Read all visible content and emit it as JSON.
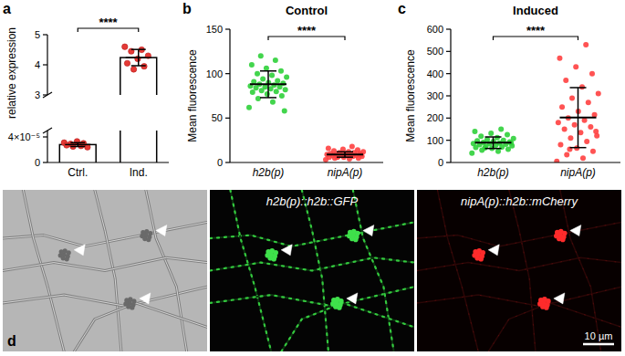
{
  "chart_data": [
    {
      "type": "bar",
      "panel_label": "a",
      "ylabel": "relative expression",
      "categories": [
        "Ctrl.",
        "Ind."
      ],
      "values": [
        2.8e-05,
        4.24
      ],
      "errors": [
        3e-06,
        0.27
      ],
      "points": [
        [
          3.1e-05,
          2.6e-05,
          2.9e-05,
          2.4e-05,
          3.3e-05,
          2.7e-05,
          3e-05,
          2.5e-05
        ],
        [
          4.6,
          4.5,
          4.45,
          4.3,
          4.2,
          4.05,
          3.95,
          3.85
        ]
      ],
      "color": "#e53935",
      "ylim": [
        0,
        5
      ],
      "y_break": [
        5e-05,
        3
      ],
      "yticks": [
        0,
        {
          "value": 4e-05,
          "label": "4×10⁻⁵"
        },
        3,
        4,
        5
      ],
      "annotations": [
        "****"
      ]
    },
    {
      "type": "dot",
      "panel_label": "b",
      "title": "Control",
      "ylabel": "Mean fluorescence",
      "categories": [
        "h2b(p)",
        "nipA(p)"
      ],
      "values": [
        88,
        9
      ],
      "errors": [
        15,
        3
      ],
      "points": [
        [
          62,
          68,
          72,
          75,
          77,
          79,
          80,
          81,
          82,
          83,
          84,
          85,
          85,
          86,
          87,
          88,
          89,
          90,
          91,
          92,
          94,
          96,
          98,
          100,
          103,
          106,
          110,
          115,
          120,
          58
        ],
        [
          3,
          4,
          5,
          5,
          6,
          6,
          7,
          7,
          7,
          8,
          8,
          8,
          8,
          9,
          9,
          9,
          10,
          10,
          10,
          11,
          11,
          12,
          12,
          13,
          14,
          15,
          16,
          18,
          6,
          9
        ]
      ],
      "colors": [
        "#2fd03a",
        "#ff4040"
      ],
      "ylim": [
        0,
        150
      ],
      "yticks": [
        0,
        50,
        100,
        150
      ],
      "annotations": [
        "****"
      ]
    },
    {
      "type": "dot",
      "panel_label": "c",
      "title": "Induced",
      "ylabel": "Mean fluorescence",
      "categories": [
        "h2b(p)",
        "nipA(p)"
      ],
      "values": [
        89,
        202
      ],
      "errors": [
        26,
        135
      ],
      "points": [
        [
          42,
          50,
          55,
          60,
          64,
          68,
          70,
          72,
          75,
          78,
          80,
          82,
          84,
          85,
          87,
          90,
          92,
          95,
          98,
          100,
          104,
          108,
          112,
          118,
          125,
          132,
          140,
          150,
          66,
          88
        ],
        [
          5,
          20,
          35,
          50,
          65,
          80,
          95,
          110,
          120,
          135,
          150,
          160,
          170,
          180,
          190,
          200,
          215,
          230,
          250,
          270,
          290,
          310,
          340,
          370,
          400,
          430,
          470,
          530,
          60,
          140
        ]
      ],
      "colors": [
        "#2fd03a",
        "#ff4040"
      ],
      "ylim": [
        0,
        600
      ],
      "yticks": [
        0,
        100,
        200,
        300,
        400,
        500,
        600
      ],
      "annotations": [
        "****"
      ]
    }
  ],
  "images": {
    "panel_label": "d",
    "captions": [
      "h2b(p)::h2b::GFP",
      "nipA(p)::h2b::mCherry"
    ],
    "scale_bar": "10 µm"
  }
}
